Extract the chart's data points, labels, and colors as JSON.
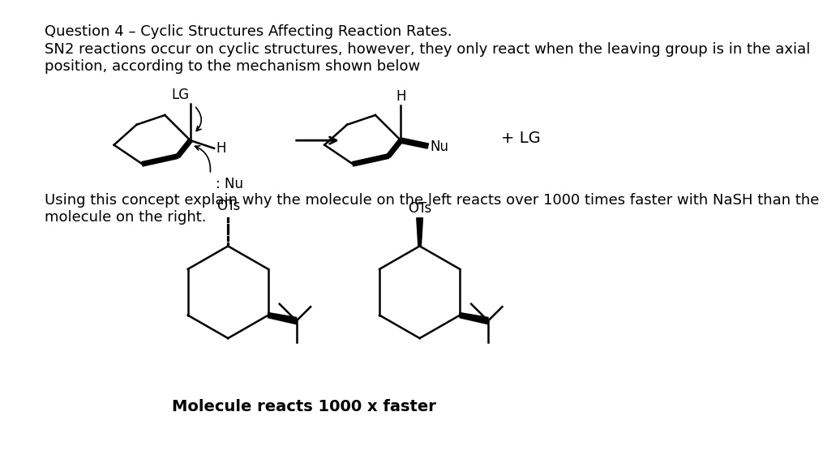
{
  "title_line1": "Question 4 – Cyclic Structures Affecting Reaction Rates.",
  "title_line2": "SN2 reactions occur on cyclic structures, however, they only react when the leaving group is in the axial",
  "title_line3": "position, according to the mechanism shown below",
  "concept_line1": "Using this concept explain why the molecule on the left reacts over 1000 times faster with NaSH than the",
  "concept_line2": "molecule on the right.",
  "caption": "Molecule reacts 1000 x faster",
  "bg_color": "#ffffff",
  "text_color": "#000000",
  "font_size_body": 13,
  "font_size_chem": 12
}
